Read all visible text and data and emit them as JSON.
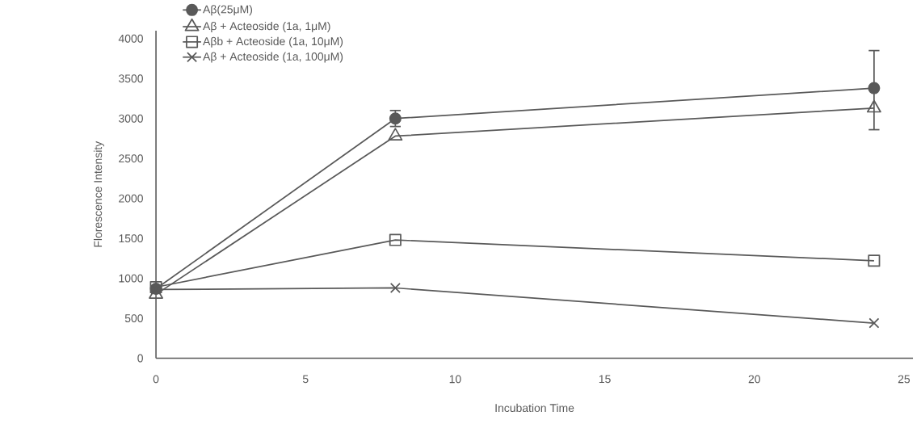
{
  "chart_data": {
    "type": "line",
    "xlabel": "Incubation Time",
    "ylabel": "Florescence Intensity",
    "x": [
      0,
      8,
      24
    ],
    "series": [
      {
        "name": "Aβ(25μM)",
        "color": "#595959",
        "marker": "circle",
        "values": [
          870,
          3000,
          3380
        ],
        "errors": [
          null,
          100,
          [
            2860,
            3850
          ]
        ]
      },
      {
        "name": "Aβ + Acteoside (1a, 1μM)",
        "color": "#595959",
        "marker": "triangle",
        "values": [
          800,
          2780,
          3130
        ]
      },
      {
        "name": "Aβb + Acteoside (1a, 10μM)",
        "color": "#595959",
        "marker": "square",
        "values": [
          890,
          1480,
          1220
        ]
      },
      {
        "name": "Aβ + Acteoside (1a, 100μM)",
        "color": "#595959",
        "marker": "cross",
        "values": [
          860,
          880,
          440
        ]
      }
    ],
    "xlim": [
      0,
      25.3
    ],
    "ylim": [
      0,
      4100
    ],
    "xticks": [
      0,
      5,
      10,
      15,
      20,
      25
    ],
    "yticks": [
      0,
      500,
      1000,
      1500,
      2000,
      2500,
      3000,
      3500,
      4000
    ],
    "grid": false,
    "legend": "top left",
    "line_style": "solid"
  }
}
